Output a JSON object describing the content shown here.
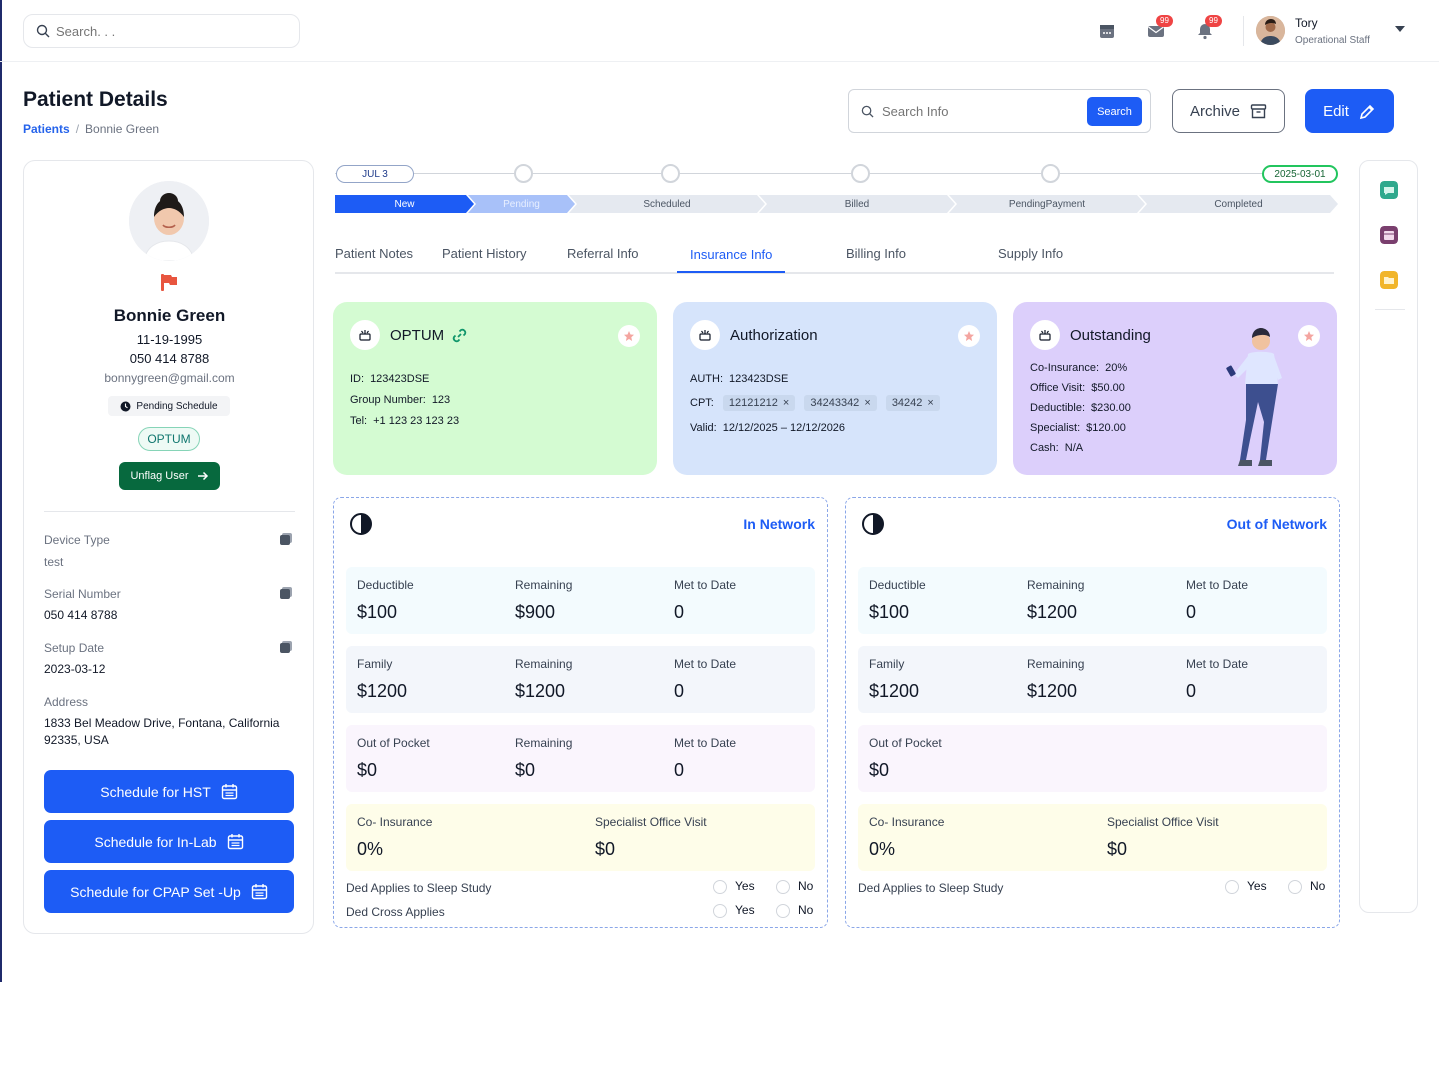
{
  "topbar": {
    "search_placeholder": "Search. . .",
    "mail_badge": "99",
    "bell_badge": "99",
    "user_name": "Tory",
    "user_role": "Operational Staff"
  },
  "header": {
    "title": "Patient Details",
    "breadcrumb_root": "Patients",
    "breadcrumb_current": "Bonnie Green",
    "search_placeholder": "Search Info",
    "search_button": "Search",
    "archive_button": "Archive",
    "edit_button": "Edit"
  },
  "patient": {
    "name": "Bonnie Green",
    "dob": "11-19-1995",
    "phone": "050 414 8788",
    "email": "bonnygreen@gmail.com",
    "status": "Pending Schedule",
    "insurer": "OPTUM",
    "unflag_button": "Unflag User",
    "fields": [
      {
        "label": "Device Type",
        "value": "test"
      },
      {
        "label": "Serial Number",
        "value": "050 414 8788"
      },
      {
        "label": "Setup Date",
        "value": "2023-03-12"
      },
      {
        "label": "Address",
        "value": "1833 Bel Meadow Drive, Fontana, California 92335, USA"
      }
    ],
    "buttons": [
      "Schedule for HST",
      "Schedule for In-Lab",
      "Schedule for CPAP Set -Up"
    ]
  },
  "progress": {
    "start_date": "JUL 3",
    "end_date": "2025-03-01",
    "stages": [
      "New",
      "Pending",
      "Scheduled",
      "Billed",
      "PendingPayment",
      "Completed"
    ]
  },
  "tabs": [
    "Patient Notes",
    "Patient History",
    "Referral Info",
    "Insurance Info",
    "Billing Info",
    "Supply Info"
  ],
  "cards": {
    "optum": {
      "title": "OPTUM",
      "id_label": "ID:",
      "id": "123423DSE",
      "group_label": "Group Number:",
      "group": "123",
      "tel_label": "Tel:",
      "tel": "+1 123 23 123 23",
      "bg": "#d4fbd2"
    },
    "auth": {
      "title": "Authorization",
      "auth_label": "AUTH:",
      "auth": "123423DSE",
      "cpt_label": "CPT:",
      "cpt": [
        "12121212",
        "34243342",
        "34242"
      ],
      "valid_label": "Valid:",
      "valid": "12/12/2025 – 12/12/2026",
      "bg": "#d6e4fb"
    },
    "outstanding": {
      "title": "Outstanding",
      "rows": [
        {
          "label": "Co-Insurance:",
          "value": "20%"
        },
        {
          "label": "Office Visit:",
          "value": "$50.00"
        },
        {
          "label": "Deductible:",
          "value": "$230.00"
        },
        {
          "label": "Specialist:",
          "value": "$120.00"
        },
        {
          "label": "Cash:",
          "value": "N/A"
        }
      ],
      "bg": "#dccffb"
    }
  },
  "in_network": {
    "title": "In Network",
    "deductible": {
      "label": "Deductible",
      "value": "$100",
      "rem_label": "Remaining",
      "rem": "$900",
      "met_label": "Met to Date",
      "met": "0"
    },
    "family": {
      "label": "Family",
      "value": "$1200",
      "rem_label": "Remaining",
      "rem": "$1200",
      "met_label": "Met to Date",
      "met": "0"
    },
    "oop": {
      "label": "Out of Pocket",
      "value": "$0",
      "rem_label": "Remaining",
      "rem": "$0",
      "met_label": "Met to Date",
      "met": "0"
    },
    "coins": {
      "label": "Co- Insurance",
      "value": "0%",
      "spec_label": "Specialist Office Visit",
      "spec": "$0"
    },
    "ded_sleep": "Ded Applies to Sleep Study",
    "ded_cross": "Ded Cross Applies",
    "yes": "Yes",
    "no": "No"
  },
  "out_network": {
    "title": "Out of Network",
    "deductible": {
      "label": "Deductible",
      "value": "$100",
      "rem_label": "Remaining",
      "rem": "$1200",
      "met_label": "Met to Date",
      "met": "0"
    },
    "family": {
      "label": "Family",
      "value": "$1200",
      "rem_label": "Remaining",
      "rem": "$1200",
      "met_label": "Met to Date",
      "met": "0"
    },
    "oop": {
      "label": "Out of Pocket",
      "value": "$0"
    },
    "coins": {
      "label": "Co- Insurance",
      "value": "0%",
      "spec_label": "Specialist Office Visit",
      "spec": "$0"
    },
    "ded_sleep": "Ded Applies to Sleep Study",
    "yes": "Yes",
    "no": "No"
  },
  "colors": {
    "primary": "#1d5cf5",
    "unflag": "#07693e",
    "flag": "#e8553f"
  }
}
